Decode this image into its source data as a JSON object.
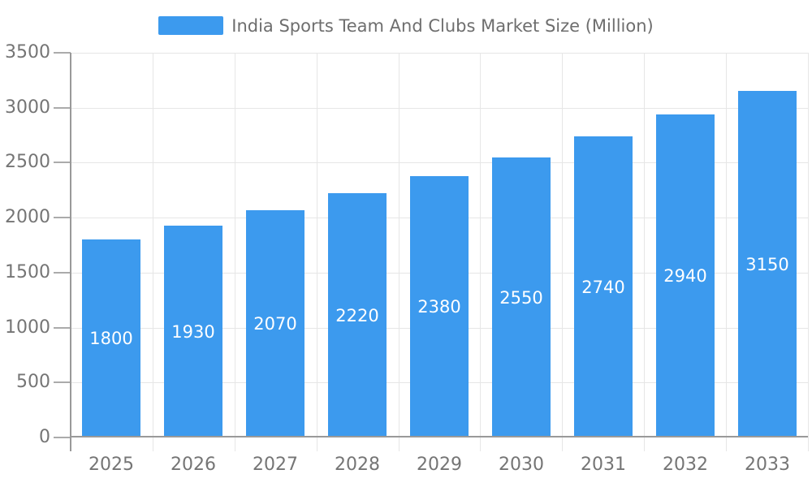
{
  "chart_data": {
    "type": "bar",
    "title": "India Sports Team And Clubs Market Size (Million)",
    "series_name": "India Sports Team And Clubs Market Size (Million)",
    "categories": [
      "2025",
      "2026",
      "2027",
      "2028",
      "2029",
      "2030",
      "2031",
      "2032",
      "2033"
    ],
    "values": [
      1800,
      1930,
      2070,
      2220,
      2380,
      2550,
      2740,
      2940,
      3150
    ],
    "xlabel": "",
    "ylabel": "",
    "ylim": [
      0,
      3500
    ],
    "ytick_interval": 500,
    "ytick_labels": [
      "0",
      "500",
      "1000",
      "1500",
      "2000",
      "2500",
      "3000",
      "3500"
    ],
    "grid": true,
    "value_label_position": "inside-center",
    "legend_position": "top-center",
    "colors": {
      "bar": "#3C9AEE",
      "grid": "#E6E6E6",
      "axis": "#999999",
      "tick": "#ABABAB",
      "axis_label": "#757575",
      "legend_text": "#6E6E6E",
      "value_label": "#FFFFFF",
      "background": "#FFFFFF"
    }
  }
}
